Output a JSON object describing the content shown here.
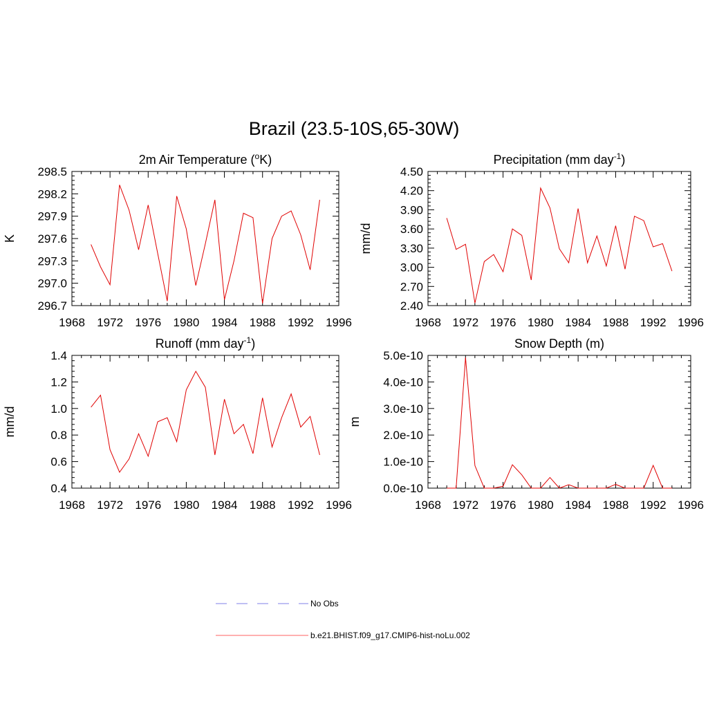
{
  "figure": {
    "title": "Brazil (23.5-10S,65-30W)"
  },
  "legend": {
    "placement": "bottom-center",
    "entries": [
      {
        "label": "No Obs",
        "color": "#9999ee",
        "dash": true
      },
      {
        "label": "b.e21.BHIST.f09_g17.CMIP6-hist-noLu.002",
        "color": "#ff8080",
        "dash": false
      }
    ]
  },
  "chart_data": [
    {
      "type": "line",
      "title_main": "2m Air Temperature (",
      "title_sup": "o",
      "title_end": "K)",
      "ylabel": "K",
      "xlim": [
        1968,
        1996
      ],
      "ylim": [
        296.7,
        298.5
      ],
      "xticks": [
        1968,
        1972,
        1976,
        1980,
        1984,
        1988,
        1992,
        1996
      ],
      "yticks": [
        296.7,
        297.0,
        297.3,
        297.6,
        297.9,
        298.2,
        298.5
      ],
      "ytick_labels": [
        "296.7",
        "297.0",
        "297.3",
        "297.6",
        "297.9",
        "298.2",
        "298.5"
      ],
      "x": [
        1970,
        1971,
        1972,
        1973,
        1974,
        1975,
        1976,
        1977,
        1978,
        1979,
        1980,
        1981,
        1982,
        1983,
        1984,
        1985,
        1986,
        1987,
        1988,
        1989,
        1990,
        1991,
        1992,
        1993,
        1994
      ],
      "values": [
        297.52,
        297.22,
        296.98,
        298.32,
        297.98,
        297.45,
        298.05,
        297.4,
        296.76,
        298.17,
        297.73,
        296.97,
        297.53,
        298.12,
        296.78,
        297.3,
        297.94,
        297.88,
        296.73,
        297.6,
        297.9,
        297.97,
        297.65,
        297.18,
        298.12
      ],
      "color": "#e00000"
    },
    {
      "type": "line",
      "title_main": "Precipitation (mm day",
      "title_sup": "-1",
      "title_end": ")",
      "ylabel": "mm/d",
      "xlim": [
        1968,
        1996
      ],
      "ylim": [
        2.4,
        4.5
      ],
      "xticks": [
        1968,
        1972,
        1976,
        1980,
        1984,
        1988,
        1992,
        1996
      ],
      "yticks": [
        2.4,
        2.7,
        3.0,
        3.3,
        3.6,
        3.9,
        4.2,
        4.5
      ],
      "ytick_labels": [
        "2.40",
        "2.70",
        "3.00",
        "3.30",
        "3.60",
        "3.90",
        "4.20",
        "4.50"
      ],
      "x": [
        1970,
        1971,
        1972,
        1973,
        1974,
        1975,
        1976,
        1977,
        1978,
        1979,
        1980,
        1981,
        1982,
        1983,
        1984,
        1985,
        1986,
        1987,
        1988,
        1989,
        1990,
        1991,
        1992,
        1993,
        1994
      ],
      "values": [
        3.77,
        3.28,
        3.36,
        2.44,
        3.09,
        3.2,
        2.93,
        3.6,
        3.5,
        2.8,
        4.24,
        3.93,
        3.29,
        3.07,
        3.92,
        3.07,
        3.49,
        3.02,
        3.65,
        2.97,
        3.8,
        3.73,
        3.32,
        3.37,
        2.94
      ],
      "color": "#e00000"
    },
    {
      "type": "line",
      "title_main": "Runoff (mm day",
      "title_sup": "-1",
      "title_end": ")",
      "ylabel": "mm/d",
      "xlim": [
        1968,
        1996
      ],
      "ylim": [
        0.4,
        1.4
      ],
      "xticks": [
        1968,
        1972,
        1976,
        1980,
        1984,
        1988,
        1992,
        1996
      ],
      "yticks": [
        0.4,
        0.6,
        0.8,
        1.0,
        1.2,
        1.4
      ],
      "ytick_labels": [
        "0.4",
        "0.6",
        "0.8",
        "1.0",
        "1.2",
        "1.4"
      ],
      "x": [
        1970,
        1971,
        1972,
        1973,
        1974,
        1975,
        1976,
        1977,
        1978,
        1979,
        1980,
        1981,
        1982,
        1983,
        1984,
        1985,
        1986,
        1987,
        1988,
        1989,
        1990,
        1991,
        1992,
        1993,
        1994
      ],
      "values": [
        1.01,
        1.1,
        0.69,
        0.52,
        0.62,
        0.81,
        0.64,
        0.9,
        0.93,
        0.75,
        1.14,
        1.28,
        1.16,
        0.65,
        1.07,
        0.81,
        0.88,
        0.66,
        1.08,
        0.71,
        0.93,
        1.11,
        0.86,
        0.94,
        0.65
      ],
      "color": "#e00000"
    },
    {
      "type": "line",
      "title_main": "Snow Depth (m)",
      "title_sup": "",
      "title_end": "",
      "ylabel": "m",
      "xlim": [
        1968,
        1996
      ],
      "ylim": [
        0,
        5e-10
      ],
      "xticks": [
        1968,
        1972,
        1976,
        1980,
        1984,
        1988,
        1992,
        1996
      ],
      "yticks": [
        0,
        1e-10,
        2e-10,
        3e-10,
        4e-10,
        5e-10
      ],
      "ytick_labels": [
        "0.0e-10",
        "1.0e-10",
        "2.0e-10",
        "3.0e-10",
        "4.0e-10",
        "5.0e-10"
      ],
      "x": [
        1970,
        1971,
        1972,
        1973,
        1974,
        1975,
        1976,
        1977,
        1978,
        1979,
        1980,
        1981,
        1982,
        1983,
        1984,
        1985,
        1986,
        1987,
        1988,
        1989,
        1990,
        1991,
        1992,
        1993,
        1994
      ],
      "values": [
        0,
        0,
        4.92e-10,
        8.5e-11,
        0,
        0,
        7e-12,
        8.8e-11,
        5e-11,
        0,
        0,
        4e-11,
        0,
        1.3e-11,
        0,
        0,
        0,
        0,
        1.4e-11,
        0,
        0,
        0,
        8.6e-11,
        0,
        0
      ],
      "color": "#e00000"
    }
  ]
}
